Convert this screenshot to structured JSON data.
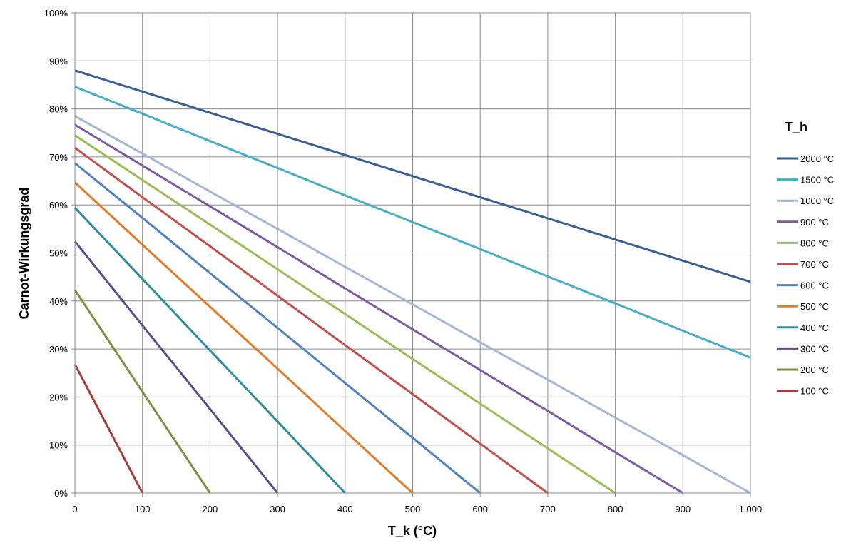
{
  "chart_data": {
    "type": "line",
    "title": "",
    "xlabel": "T_k (°C)",
    "ylabel": "Carnot-Wirkungsgrad",
    "xlim": [
      0,
      1000
    ],
    "ylim": [
      0,
      100
    ],
    "x_ticks": [
      0,
      100,
      200,
      300,
      400,
      500,
      600,
      700,
      800,
      900,
      1000
    ],
    "x_tick_labels": [
      "0",
      "100",
      "200",
      "300",
      "400",
      "500",
      "600",
      "700",
      "800",
      "900",
      "1.000"
    ],
    "y_ticks": [
      0,
      10,
      20,
      30,
      40,
      50,
      60,
      70,
      80,
      90,
      100
    ],
    "y_tick_labels": [
      "0%",
      "10%",
      "20%",
      "30%",
      "40%",
      "50%",
      "60%",
      "70%",
      "80%",
      "90%",
      "100%"
    ],
    "grid": true,
    "legend": {
      "title": "T_h",
      "position": "right"
    },
    "series": [
      {
        "name": "2000 °C",
        "color": "#3A5F8F",
        "x": [
          0,
          100,
          200,
          300,
          400,
          500,
          600,
          700,
          800,
          900,
          1000
        ],
        "y": [
          88.0,
          83.6,
          79.2,
          74.8,
          70.4,
          66.0,
          61.6,
          57.2,
          52.8,
          48.4,
          44.0
        ]
      },
      {
        "name": "1500 °C",
        "color": "#4BACC6",
        "x": [
          0,
          100,
          200,
          300,
          400,
          500,
          600,
          700,
          800,
          900,
          1000
        ],
        "y": [
          84.6,
          79.0,
          73.3,
          67.7,
          62.0,
          56.4,
          50.8,
          45.1,
          39.5,
          33.8,
          28.2
        ]
      },
      {
        "name": "1000 °C",
        "color": "#A5B6D4",
        "x": [
          0,
          100,
          200,
          300,
          400,
          500,
          600,
          700,
          800,
          900,
          1000
        ],
        "y": [
          78.5,
          70.7,
          62.8,
          55.0,
          47.1,
          39.3,
          31.4,
          23.6,
          15.7,
          7.9,
          0.0
        ]
      },
      {
        "name": "900 °C",
        "color": "#7C5BA0",
        "x": [
          0,
          100,
          200,
          300,
          400,
          500,
          600,
          700,
          800,
          900
        ],
        "y": [
          76.7,
          68.2,
          59.7,
          51.2,
          42.6,
          34.1,
          25.6,
          17.1,
          8.5,
          0.0
        ]
      },
      {
        "name": "800 °C",
        "color": "#9BBB59",
        "x": [
          0,
          100,
          200,
          300,
          400,
          500,
          600,
          700,
          800
        ],
        "y": [
          74.5,
          65.2,
          55.9,
          46.6,
          37.3,
          27.9,
          18.6,
          9.3,
          0.0
        ]
      },
      {
        "name": "700 °C",
        "color": "#C0504D",
        "x": [
          0,
          100,
          200,
          300,
          400,
          500,
          600,
          700
        ],
        "y": [
          71.9,
          61.6,
          51.4,
          41.1,
          30.8,
          20.6,
          10.3,
          0.0
        ]
      },
      {
        "name": "600 °C",
        "color": "#4F81BD",
        "x": [
          0,
          100,
          200,
          300,
          400,
          500,
          600
        ],
        "y": [
          68.7,
          57.3,
          45.8,
          34.4,
          22.9,
          11.5,
          0.0
        ]
      },
      {
        "name": "500 °C",
        "color": "#E07B2A",
        "x": [
          0,
          100,
          200,
          300,
          400,
          500
        ],
        "y": [
          64.7,
          51.7,
          38.8,
          25.9,
          12.9,
          0.0
        ]
      },
      {
        "name": "400 °C",
        "color": "#2E8C9A",
        "x": [
          0,
          100,
          200,
          300,
          400
        ],
        "y": [
          59.4,
          44.6,
          29.7,
          14.9,
          0.0
        ]
      },
      {
        "name": "300 °C",
        "color": "#5E4A86",
        "x": [
          0,
          100,
          200,
          300
        ],
        "y": [
          52.4,
          34.9,
          17.5,
          0.0
        ]
      },
      {
        "name": "200 °C",
        "color": "#77933C",
        "x": [
          0,
          100,
          200
        ],
        "y": [
          42.3,
          21.1,
          0.0
        ]
      },
      {
        "name": "100 °C",
        "color": "#A33E3C",
        "x": [
          0,
          100
        ],
        "y": [
          26.8,
          0.0
        ]
      }
    ]
  }
}
